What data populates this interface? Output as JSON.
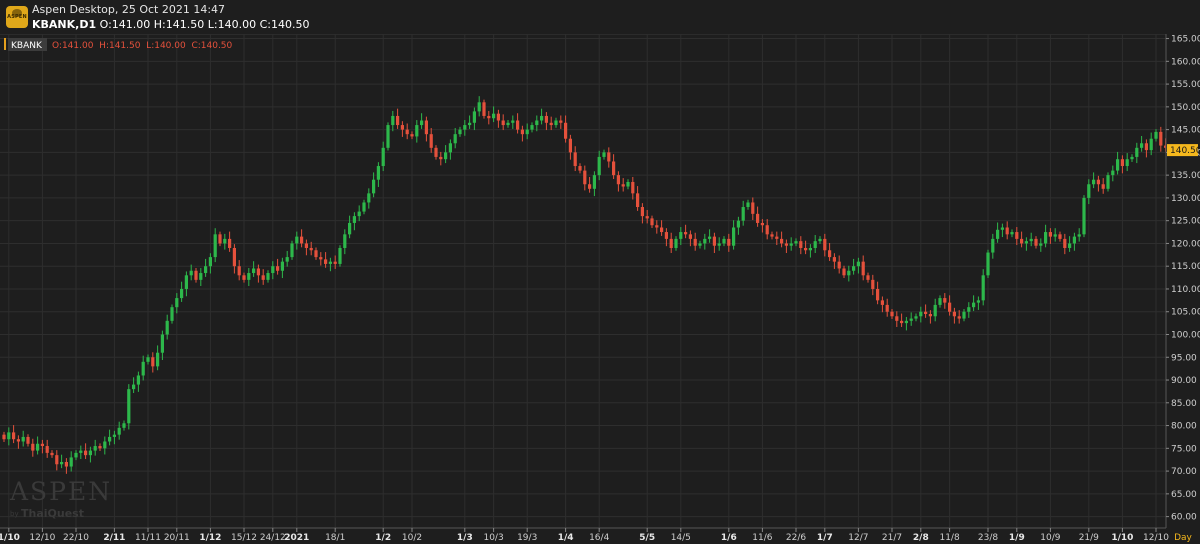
{
  "app": {
    "title": "Aspen Desktop, 25 Oct 2021 14:47",
    "symbol_timeframe": "KBANK,D1",
    "ohlc": "O:141.00 H:141.50 L:140.00 C:140.50",
    "logo_text": "ASPEN"
  },
  "watermark": {
    "brand": "ASPEN",
    "by": "by",
    "maker": "ThaiQuest"
  },
  "legend": {
    "symbol": "KBANK",
    "ohlc": "O:141.00  H:141.50  L:140.00  C:140.50"
  },
  "colors": {
    "up": "#2db84b",
    "down": "#e5513c",
    "background": "#1e1e1e",
    "grid": "#2e2e2e",
    "last_price_tag": "#f5b81d"
  },
  "chart_data": {
    "type": "candlestick",
    "timeframe": "D1",
    "ylim": [
      57.5,
      166
    ],
    "y_ticks": [
      "165.00",
      "160.00",
      "155.00",
      "150.00",
      "145.00",
      "140.00",
      "135.00",
      "130.00",
      "125.00",
      "120.00",
      "115.00",
      "110.00",
      "105.00",
      "100.00",
      "95.00",
      "90.00",
      "85.00",
      "80.00",
      "75.00",
      "70.00",
      "65.00",
      "60.00"
    ],
    "x_labels": [
      {
        "text": "1/10",
        "index": 1,
        "major": true
      },
      {
        "text": "12/10",
        "index": 8,
        "major": false
      },
      {
        "text": "22/10",
        "index": 15,
        "major": false
      },
      {
        "text": "2/11",
        "index": 23,
        "major": true
      },
      {
        "text": "11/11",
        "index": 30,
        "major": false
      },
      {
        "text": "20/11",
        "index": 36,
        "major": false
      },
      {
        "text": "1/12",
        "index": 43,
        "major": true
      },
      {
        "text": "15/12",
        "index": 50,
        "major": false
      },
      {
        "text": "24/12",
        "index": 56,
        "major": false
      },
      {
        "text": "2021",
        "index": 61,
        "major": true
      },
      {
        "text": "18/1",
        "index": 69,
        "major": false
      },
      {
        "text": "1/2",
        "index": 79,
        "major": true
      },
      {
        "text": "10/2",
        "index": 85,
        "major": false
      },
      {
        "text": "1/3",
        "index": 96,
        "major": true
      },
      {
        "text": "10/3",
        "index": 102,
        "major": false
      },
      {
        "text": "19/3",
        "index": 109,
        "major": false
      },
      {
        "text": "1/4",
        "index": 117,
        "major": true
      },
      {
        "text": "16/4",
        "index": 124,
        "major": false
      },
      {
        "text": "5/5",
        "index": 134,
        "major": true
      },
      {
        "text": "14/5",
        "index": 141,
        "major": false
      },
      {
        "text": "1/6",
        "index": 151,
        "major": true
      },
      {
        "text": "11/6",
        "index": 158,
        "major": false
      },
      {
        "text": "22/6",
        "index": 165,
        "major": false
      },
      {
        "text": "1/7",
        "index": 171,
        "major": true
      },
      {
        "text": "12/7",
        "index": 178,
        "major": false
      },
      {
        "text": "21/7",
        "index": 185,
        "major": false
      },
      {
        "text": "2/8",
        "index": 191,
        "major": true
      },
      {
        "text": "11/8",
        "index": 197,
        "major": false
      },
      {
        "text": "23/8",
        "index": 205,
        "major": false
      },
      {
        "text": "1/9",
        "index": 211,
        "major": true
      },
      {
        "text": "10/9",
        "index": 218,
        "major": false
      },
      {
        "text": "21/9",
        "index": 226,
        "major": false
      },
      {
        "text": "1/10",
        "index": 233,
        "major": true
      },
      {
        "text": "12/10",
        "index": 240,
        "major": false
      }
    ],
    "x_axis_unit": "Day",
    "last_price": 140.5,
    "last_price_label": "140.50",
    "closes": [
      77,
      78.5,
      77,
      76.5,
      77.5,
      76,
      74.5,
      76,
      75.5,
      74,
      73.5,
      71.5,
      72,
      71,
      73,
      74,
      74.5,
      73.5,
      74.5,
      75.5,
      75,
      76.5,
      77.5,
      78,
      79.5,
      80.5,
      88,
      89,
      91,
      94,
      95,
      93,
      96,
      100,
      103,
      106,
      108,
      110,
      113,
      114,
      112,
      113.5,
      115,
      117,
      122,
      120,
      121,
      119,
      115,
      113,
      112,
      113.5,
      114.5,
      113,
      112,
      113.5,
      115,
      114,
      116,
      117,
      120,
      121.5,
      120,
      119,
      118.5,
      117,
      116.5,
      115.5,
      116,
      115.5,
      119,
      122,
      124.5,
      126,
      127,
      129,
      131,
      134,
      137,
      141,
      146,
      148,
      146,
      145,
      144,
      143.5,
      146,
      147,
      144,
      141,
      139,
      138.5,
      140,
      142,
      144,
      145,
      146,
      146.5,
      149,
      151,
      148,
      147.5,
      148.5,
      147,
      146,
      146.5,
      147,
      145,
      144,
      145,
      146,
      147,
      148,
      146.5,
      146,
      147,
      146.5,
      143,
      140,
      137,
      136,
      133,
      132,
      135,
      139,
      140,
      138,
      135,
      133,
      132.5,
      133.5,
      131,
      128,
      126,
      125.5,
      124,
      123.5,
      122.5,
      121,
      119,
      121,
      122.5,
      122,
      121,
      119.5,
      120,
      121,
      121.5,
      119.5,
      120,
      121,
      119.5,
      123.5,
      125,
      128,
      129,
      126.5,
      124.5,
      124,
      122,
      121.5,
      121,
      120,
      119.5,
      120,
      120.5,
      119,
      118.5,
      119,
      120.5,
      121,
      118.5,
      117,
      116,
      114.5,
      113,
      114,
      115,
      116,
      113,
      112,
      110,
      107.5,
      106.5,
      105,
      104,
      103,
      102.5,
      103,
      103.5,
      104,
      105,
      104.5,
      104,
      106.5,
      108,
      107,
      105,
      104,
      103.5,
      105,
      106,
      107,
      107.5,
      113,
      118,
      121,
      123,
      123.5,
      122,
      122.5,
      121,
      120,
      120.5,
      121,
      119.5,
      120,
      122.5,
      121.5,
      122,
      121,
      119,
      120,
      121.5,
      122,
      130,
      133,
      134,
      133,
      132,
      135,
      136,
      138.5,
      137,
      138.5,
      139,
      141,
      142,
      140.5,
      143,
      144.5,
      141.5,
      141,
      140.5
    ]
  }
}
